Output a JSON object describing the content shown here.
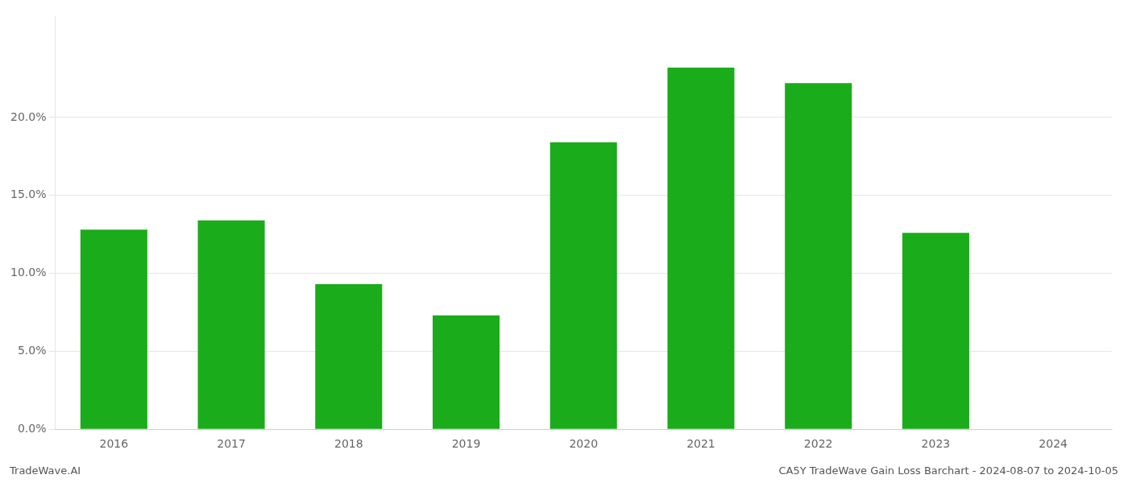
{
  "chart_data": {
    "type": "bar",
    "categories": [
      "2016",
      "2017",
      "2018",
      "2019",
      "2020",
      "2021",
      "2022",
      "2023",
      "2024"
    ],
    "values": [
      0.128,
      0.134,
      0.093,
      0.073,
      0.184,
      0.232,
      0.222,
      0.126,
      0.0
    ],
    "color": "#1aac1a",
    "ylim": [
      0,
      0.265
    ],
    "yticks": [
      {
        "value": 0.0,
        "label": "0.0%"
      },
      {
        "value": 0.05,
        "label": "5.0%"
      },
      {
        "value": 0.1,
        "label": "10.0%"
      },
      {
        "value": 0.15,
        "label": "15.0%"
      },
      {
        "value": 0.2,
        "label": "20.0%"
      }
    ],
    "grid": true,
    "annotations": [
      "TradeWave.AI",
      "CA5Y TradeWave Gain Loss Barchart - 2024-08-07 to 2024-10-05"
    ]
  }
}
